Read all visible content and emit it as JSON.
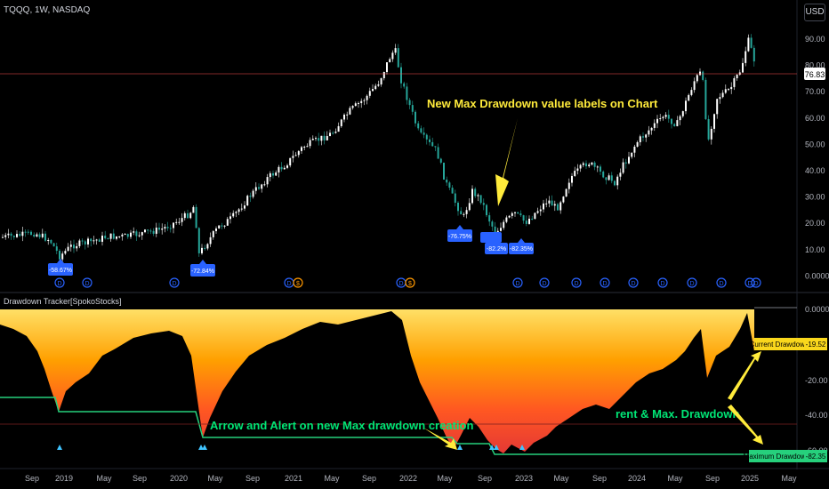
{
  "header": {
    "symbol_info": "TQQQ, 1W, NASDAQ",
    "currency": "USD"
  },
  "price_axis": {
    "ticks": [
      "90.00",
      "80.00",
      "70.00",
      "60.00",
      "50.00",
      "40.00",
      "30.00",
      "20.00",
      "10.00",
      "0.0000"
    ],
    "last_price": "76.83"
  },
  "indicator": {
    "title": "Drawdown Tracker[SpokoStocks]",
    "axis_ticks": [
      "0.0000",
      "-20.00",
      "-40.00",
      "-60.00"
    ],
    "current_label": "Current Drawdown",
    "current_value": "-19.52",
    "max_label": "Maximum Drawdown",
    "max_value": "-82.35"
  },
  "time_axis": {
    "labels": [
      "Sep",
      "2019",
      "May",
      "Sep",
      "2020",
      "May",
      "Sep",
      "2021",
      "May",
      "Sep",
      "2022",
      "May",
      "Sep",
      "2023",
      "May",
      "Sep",
      "2024",
      "May",
      "Sep",
      "2025",
      "May"
    ]
  },
  "drawdown_labels": [
    "-58.67%",
    "-72.84%",
    "-76.75%",
    "-82.2%",
    "-82.35%"
  ],
  "annotations": {
    "labels_on_chart": "New Max Drawdown value labels on Chart",
    "arrow_alert": "Arrow and Alert on new Max drawdown creation",
    "current_max": "rent & Max. Drawdown"
  },
  "colors": {
    "accent_blue": "#2962ff",
    "annotation_yellow": "#ffeb3b",
    "annotation_green": "#00e676",
    "max_dd_line": "#26d07c",
    "current_dd": "#f9d71c",
    "price_line": "#ff5252"
  }
}
